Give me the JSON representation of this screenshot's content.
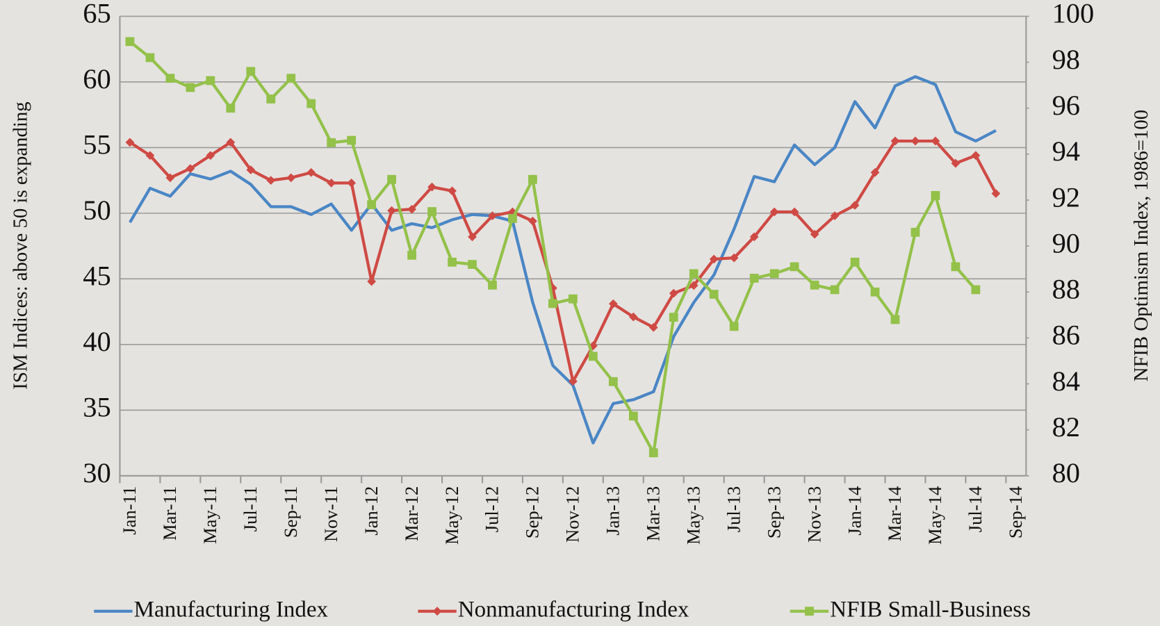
{
  "chart_data": {
    "type": "line",
    "y_label": "ISM Indices:  above 50 is expanding",
    "y2_label": "NFIB Optimism Index, 1986=100",
    "categories": [
      "Jan-11",
      null,
      "Mar-11",
      null,
      "May-11",
      null,
      "Jul-11",
      null,
      "Sep-11",
      null,
      "Nov-11",
      null,
      "Jan-12",
      null,
      "Mar-12",
      null,
      "May-12",
      null,
      "Jul-12",
      null,
      "Sep-12",
      null,
      "Nov-12",
      null,
      "Jan-13",
      null,
      "Mar-13",
      null,
      "May-13",
      null,
      "Jul-13",
      null,
      "Sep-13",
      null,
      "Nov-13",
      null,
      "Jan-14",
      null,
      "Mar-14",
      null,
      "May-14",
      null,
      "Jul-14",
      null,
      "Sep-14"
    ],
    "series": [
      {
        "name": "Manufacturing Index",
        "color": "#4a86c5",
        "marker": "none",
        "axis": "y",
        "values": [
          49.3,
          51.9,
          51.3,
          53.0,
          52.6,
          53.2,
          52.2,
          50.5,
          50.5,
          49.9,
          50.7,
          48.7,
          50.7,
          48.7,
          49.2,
          48.9,
          49.5,
          49.9,
          49.8,
          49.4,
          43.2,
          38.4,
          36.9,
          32.5,
          35.5,
          35.8,
          36.4,
          40.6,
          43.2,
          45.3,
          48.8,
          52.8,
          52.4,
          55.2,
          53.7,
          55.0,
          58.5,
          56.5,
          59.7,
          60.4,
          59.8,
          56.2,
          55.5,
          56.3,
          null
        ]
      },
      {
        "name": "Nonmanufacturing Index",
        "color": "#cf4a44",
        "marker": "diamond",
        "axis": "y",
        "values": [
          55.4,
          54.4,
          52.7,
          53.4,
          54.4,
          55.4,
          53.3,
          52.5,
          52.7,
          53.1,
          52.3,
          52.3,
          44.8,
          50.2,
          50.3,
          52.0,
          51.7,
          48.2,
          49.8,
          50.1,
          49.4,
          44.3,
          37.2,
          39.9,
          43.1,
          42.1,
          41.3,
          43.9,
          44.5,
          46.5,
          46.6,
          48.2,
          50.1,
          50.1,
          48.4,
          49.8,
          50.6,
          53.1,
          55.5,
          55.5,
          55.5,
          53.8,
          54.4,
          51.5,
          null
        ]
      },
      {
        "name": "NFIB Small-Business",
        "color": "#93c149",
        "marker": "square",
        "axis": "y2",
        "values": [
          98.9,
          98.2,
          97.3,
          96.9,
          97.2,
          96.0,
          97.6,
          96.4,
          97.3,
          96.2,
          94.5,
          94.6,
          91.8,
          92.9,
          89.6,
          91.5,
          89.3,
          89.2,
          88.3,
          91.2,
          92.9,
          87.5,
          87.7,
          85.2,
          84.1,
          82.6,
          81.0,
          86.9,
          88.8,
          87.9,
          86.5,
          88.6,
          88.8,
          89.1,
          88.3,
          88.1,
          89.3,
          88.0,
          86.8,
          90.6,
          92.2,
          89.1,
          88.1,
          null,
          null
        ]
      }
    ],
    "ylim": [
      30,
      65
    ],
    "yticks": [
      30,
      35,
      40,
      45,
      50,
      55,
      60,
      65
    ],
    "y2lim": [
      80,
      100
    ],
    "y2ticks": [
      80,
      82,
      84,
      86,
      88,
      90,
      92,
      94,
      96,
      98,
      100
    ],
    "grid": true,
    "legend": "bottom"
  }
}
